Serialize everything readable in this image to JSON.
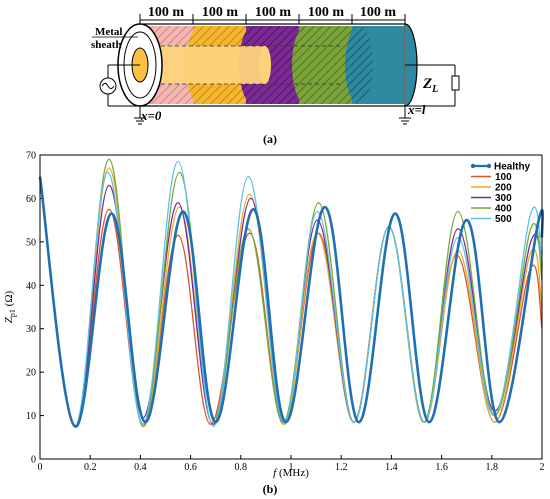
{
  "panel_a": {
    "segment_labels": [
      "100 m",
      "100 m",
      "100 m",
      "100 m",
      "100 m"
    ],
    "metal_sheath_label_line1": "Metal",
    "metal_sheath_label_line2": "sheath",
    "x0_label": "x=0",
    "xl_label": "x=l",
    "load_label": "Z",
    "load_subscript": "L",
    "caption": "(a)",
    "segment_colors": [
      "#f0b8b0",
      "#f5b731",
      "#7b2a95",
      "#7aa33a",
      "#2e8aa0"
    ]
  },
  "panel_b_caption": "(b)",
  "chart_data": {
    "type": "line",
    "xlabel_var": "f",
    "xlabel_unit": " (MHz)",
    "ylabel_var": "Z",
    "ylabel_sub": "p1",
    "ylabel_unit": " (Ω)",
    "xlim": [
      0,
      2
    ],
    "ylim": [
      0,
      70
    ],
    "xticks": [
      "0",
      "0.2",
      "0.4",
      "0.6",
      "0.8",
      "1",
      "1.2",
      "1.4",
      "1.6",
      "1.8",
      "2"
    ],
    "yticks": [
      "0",
      "10",
      "20",
      "30",
      "40",
      "50",
      "60",
      "70"
    ],
    "legend_position": "top-right",
    "series": [
      {
        "name": "Healthy",
        "color": "#1f6fb5",
        "width": 2.6,
        "marker": true,
        "points": [
          [
            0,
            65
          ],
          [
            0.14,
            7.5
          ],
          [
            0.285,
            56.5
          ],
          [
            0.42,
            8.5
          ],
          [
            0.57,
            57
          ],
          [
            0.7,
            8.5
          ],
          [
            0.85,
            57.5
          ],
          [
            0.98,
            8.5
          ],
          [
            1.135,
            58
          ],
          [
            1.27,
            8.5
          ],
          [
            1.415,
            56.5
          ],
          [
            1.55,
            8.5
          ],
          [
            1.7,
            55
          ],
          [
            1.83,
            8.5
          ],
          [
            1.985,
            54.5
          ],
          [
            2.0,
            51
          ]
        ]
      },
      {
        "name": "100",
        "color": "#d9542b",
        "width": 1.3,
        "points": [
          [
            0,
            65
          ],
          [
            0.14,
            7.5
          ],
          [
            0.275,
            57.5
          ],
          [
            0.41,
            8
          ],
          [
            0.55,
            51.5
          ],
          [
            0.68,
            8
          ],
          [
            0.835,
            52
          ],
          [
            0.97,
            8
          ],
          [
            1.11,
            52
          ],
          [
            1.25,
            8.5
          ],
          [
            1.39,
            53.5
          ],
          [
            1.53,
            8.5
          ],
          [
            1.66,
            47
          ],
          [
            1.81,
            8.5
          ],
          [
            1.955,
            44
          ],
          [
            2.0,
            30
          ]
        ]
      },
      {
        "name": "200",
        "color": "#e8a92a",
        "width": 1.3,
        "points": [
          [
            0,
            65
          ],
          [
            0.14,
            7.5
          ],
          [
            0.275,
            67
          ],
          [
            0.41,
            7.5
          ],
          [
            0.555,
            58
          ],
          [
            0.69,
            8
          ],
          [
            0.835,
            61
          ],
          [
            0.97,
            8
          ],
          [
            1.105,
            52
          ],
          [
            1.25,
            8.5
          ],
          [
            1.39,
            53.5
          ],
          [
            1.53,
            8.5
          ],
          [
            1.665,
            48
          ],
          [
            1.81,
            8.5
          ],
          [
            1.955,
            47.5
          ],
          [
            2.0,
            34
          ]
        ]
      },
      {
        "name": "300",
        "color": "#7b2a95",
        "width": 1.3,
        "points": [
          [
            0,
            65
          ],
          [
            0.14,
            7.5
          ],
          [
            0.275,
            63
          ],
          [
            0.41,
            9.5
          ],
          [
            0.55,
            59
          ],
          [
            0.69,
            8
          ],
          [
            0.84,
            60
          ],
          [
            0.97,
            8.5
          ],
          [
            1.105,
            55
          ],
          [
            1.25,
            8.5
          ],
          [
            1.39,
            53.5
          ],
          [
            1.53,
            8.5
          ],
          [
            1.665,
            53
          ],
          [
            1.81,
            11
          ],
          [
            1.955,
            50
          ],
          [
            2.0,
            44
          ]
        ]
      },
      {
        "name": "400",
        "color": "#76a83a",
        "width": 1.3,
        "points": [
          [
            0,
            65
          ],
          [
            0.14,
            7.5
          ],
          [
            0.275,
            69
          ],
          [
            0.41,
            7.5
          ],
          [
            0.555,
            66
          ],
          [
            0.69,
            9.5
          ],
          [
            0.83,
            53
          ],
          [
            0.97,
            8.5
          ],
          [
            1.11,
            59
          ],
          [
            1.25,
            8.5
          ],
          [
            1.39,
            53.5
          ],
          [
            1.53,
            8.5
          ],
          [
            1.665,
            57
          ],
          [
            1.81,
            10
          ],
          [
            1.955,
            53
          ],
          [
            2.0,
            41
          ]
        ]
      },
      {
        "name": "500",
        "color": "#58c3e6",
        "width": 1.3,
        "points": [
          [
            0,
            65
          ],
          [
            0.14,
            7.5
          ],
          [
            0.27,
            66
          ],
          [
            0.41,
            8
          ],
          [
            0.55,
            68.5
          ],
          [
            0.69,
            7.5
          ],
          [
            0.83,
            65
          ],
          [
            0.97,
            8.5
          ],
          [
            1.105,
            57
          ],
          [
            1.25,
            8.5
          ],
          [
            1.39,
            53.5
          ],
          [
            1.53,
            8.5
          ],
          [
            1.665,
            51
          ],
          [
            1.81,
            10
          ],
          [
            1.955,
            56.5
          ],
          [
            2.0,
            45
          ]
        ]
      }
    ]
  }
}
